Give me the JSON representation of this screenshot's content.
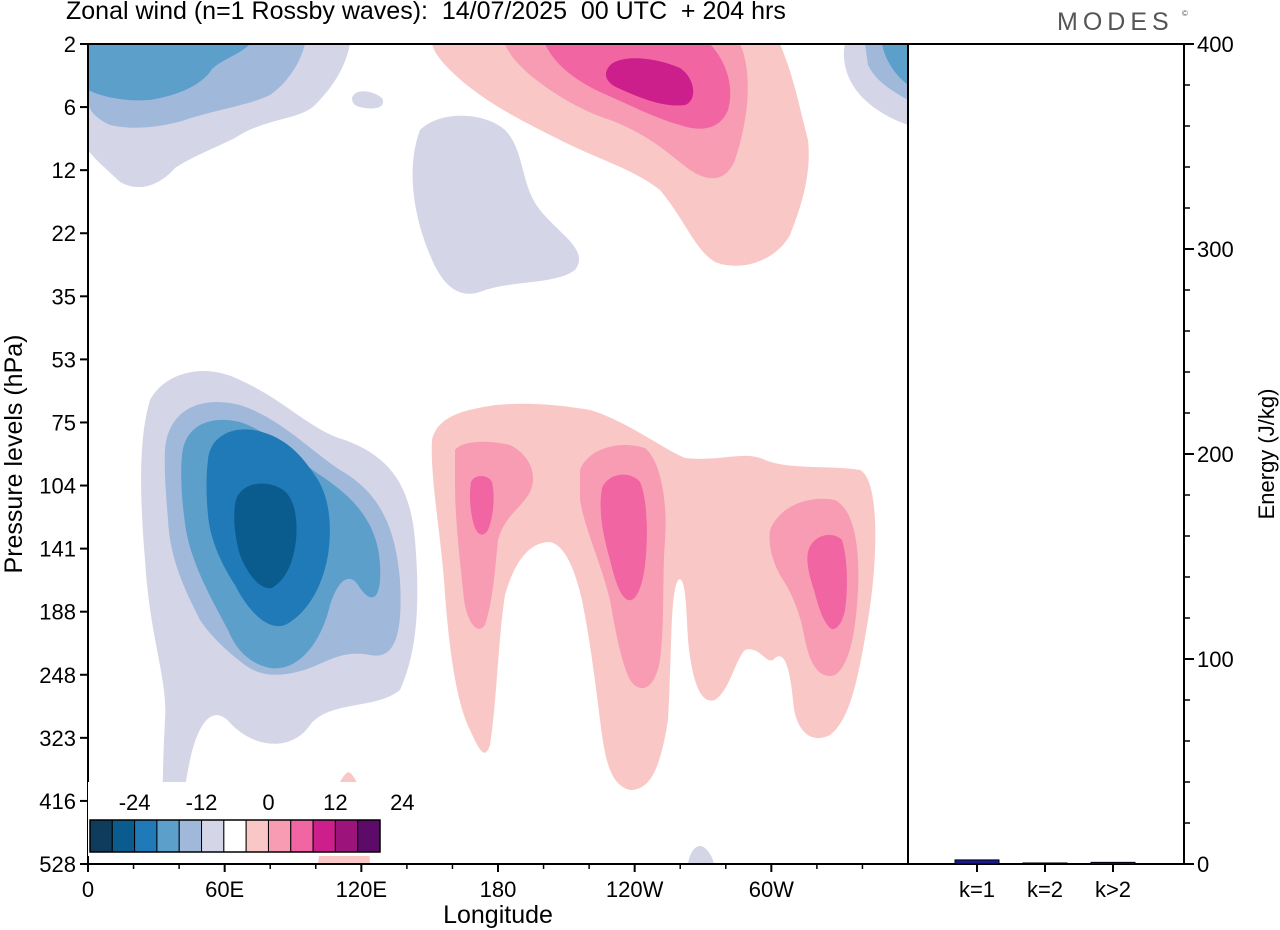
{
  "header": {
    "title": "Zonal wind (n=1 Rossby waves):  14/07/2025  00 UTC  + 204 hrs",
    "brand": "MODES",
    "brand_mark": "©"
  },
  "chart_data": [
    {
      "type": "heatmap",
      "title": "Zonal wind (n=1 Rossby waves):  14/07/2025  00 UTC  + 204 hrs",
      "xlabel": "Longitude",
      "ylabel": "Pressure levels (hPa)",
      "x_ticks": [
        "0",
        "60E",
        "120E",
        "180",
        "120W",
        "60W"
      ],
      "x_tick_degrees": [
        0,
        60,
        120,
        180,
        240,
        300
      ],
      "xlim": [
        0,
        360
      ],
      "y_ticks": [
        "2",
        "6",
        "12",
        "22",
        "35",
        "53",
        "75",
        "104",
        "141",
        "188",
        "248",
        "323",
        "416",
        "528"
      ],
      "y_scale": "categorical pressure levels, top to bottom",
      "contour_levels": [
        -28,
        -24,
        -20,
        -16,
        -12,
        -8,
        -4,
        4,
        8,
        12,
        16,
        20,
        24,
        28
      ],
      "colorbar": {
        "tick_labels": [
          "-24",
          "-12",
          "0",
          "12",
          "24"
        ],
        "colors": [
          "#0f3c5c",
          "#0b5c8e",
          "#1f7ab7",
          "#5d9fcb",
          "#a0b9db",
          "#d4d6e8",
          "#ffffff",
          "#f9c8c6",
          "#f89cb4",
          "#f065a2",
          "#cc1f8c",
          "#9c137c",
          "#5c0b68"
        ],
        "placement": "lower-left inside plot"
      },
      "features": [
        {
          "sign": "negative",
          "peak_level": "-24",
          "longitude": "~75E",
          "pressure": "104-188 hPa"
        },
        {
          "sign": "negative",
          "peak_level": "-16",
          "longitude": "~0-40E",
          "pressure": "2-6 hPa"
        },
        {
          "sign": "positive",
          "peak_level": "20",
          "longitude": "~120W",
          "pressure": "2-6 hPa"
        },
        {
          "sign": "positive",
          "peak_level": "16",
          "longitude": "~172E",
          "pressure": "104-141 hPa"
        },
        {
          "sign": "positive",
          "peak_level": "16",
          "longitude": "~115W",
          "pressure": "104-188 hPa"
        },
        {
          "sign": "positive",
          "peak_level": "16",
          "longitude": "~45W",
          "pressure": "141-188 hPa"
        }
      ]
    },
    {
      "type": "bar",
      "ylabel": "Energy (J/kg)",
      "ylim": [
        0,
        400
      ],
      "y_ticks": [
        "0",
        "100",
        "200",
        "300",
        "400"
      ],
      "categories": [
        "k=1",
        "k=2",
        "k>2"
      ],
      "values": [
        2.0,
        0.5,
        0.8
      ],
      "bar_color": "#1a1a8c"
    }
  ]
}
